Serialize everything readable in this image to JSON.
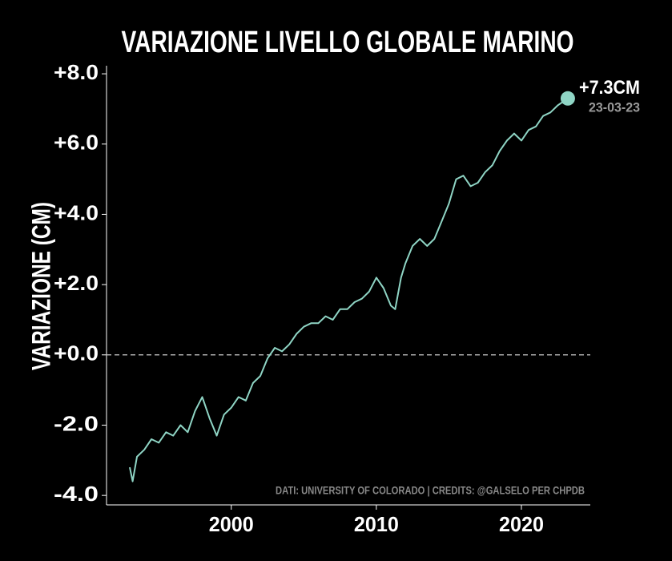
{
  "chart_data": {
    "type": "line",
    "title": "VARIAZIONE LIVELLO GLOBALE MARINO",
    "y_label": "VARIAZIONE (CM)",
    "source": "DATI: UNIVERSITY OF COLORADO | CREDITS: @GALSELO PER CHPDB",
    "color": "#8fd5c5",
    "x": [
      1993.0,
      1993.2,
      1993.5,
      1994.0,
      1994.5,
      1995.0,
      1995.5,
      1996.0,
      1996.5,
      1997.0,
      1997.5,
      1998.0,
      1998.5,
      1999.0,
      1999.5,
      2000.0,
      2000.5,
      2001.0,
      2001.5,
      2002.0,
      2002.5,
      2003.0,
      2003.5,
      2004.0,
      2004.5,
      2005.0,
      2005.5,
      2006.0,
      2006.5,
      2007.0,
      2007.5,
      2008.0,
      2008.5,
      2009.0,
      2009.5,
      2010.0,
      2010.5,
      2011.0,
      2011.3,
      2011.7,
      2012.0,
      2012.5,
      2013.0,
      2013.5,
      2014.0,
      2014.5,
      2015.0,
      2015.5,
      2016.0,
      2016.5,
      2017.0,
      2017.5,
      2018.0,
      2018.5,
      2019.0,
      2019.5,
      2020.0,
      2020.5,
      2021.0,
      2021.5,
      2022.0,
      2022.5,
      2023.2
    ],
    "values": [
      -3.2,
      -3.6,
      -2.9,
      -2.7,
      -2.4,
      -2.5,
      -2.2,
      -2.3,
      -2.0,
      -2.2,
      -1.6,
      -1.2,
      -1.8,
      -2.3,
      -1.7,
      -1.5,
      -1.2,
      -1.3,
      -0.8,
      -0.6,
      -0.1,
      0.2,
      0.1,
      0.3,
      0.6,
      0.8,
      0.9,
      0.9,
      1.1,
      1.0,
      1.3,
      1.3,
      1.5,
      1.6,
      1.8,
      2.2,
      1.9,
      1.4,
      1.3,
      2.2,
      2.6,
      3.1,
      3.3,
      3.1,
      3.3,
      3.8,
      4.3,
      5.0,
      5.1,
      4.8,
      4.9,
      5.2,
      5.4,
      5.8,
      6.1,
      6.3,
      6.1,
      6.4,
      6.5,
      6.8,
      6.9,
      7.1,
      7.3
    ],
    "xlim": [
      1991.4,
      2024.75
    ],
    "ylim": [
      -4.27,
      8.23
    ],
    "xticks": [
      2000,
      2010,
      2020
    ],
    "yticks": [
      {
        "value": 8,
        "label": "+8.0"
      },
      {
        "value": 6,
        "label": "+6.0"
      },
      {
        "value": 4,
        "label": "+4.0"
      },
      {
        "value": 2,
        "label": "+2.0"
      },
      {
        "value": 0,
        "label": "+0.0"
      },
      {
        "value": -2,
        "label": "-2.0"
      },
      {
        "value": -4,
        "label": "-4.0"
      }
    ],
    "reference_line": 0,
    "highlight": {
      "x": 2023.2,
      "y": 7.3,
      "label": "+7.3CM",
      "date": "23-03-23"
    }
  }
}
